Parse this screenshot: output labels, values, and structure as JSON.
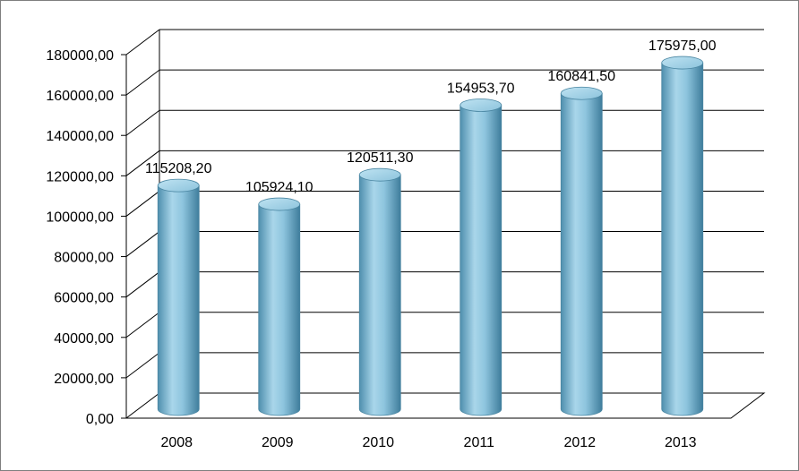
{
  "chart_data": {
    "type": "bar",
    "title": "",
    "xlabel": "",
    "ylabel": "",
    "categories": [
      "2008",
      "2009",
      "2010",
      "2011",
      "2012",
      "2013"
    ],
    "values": [
      115208.2,
      105924.1,
      120511.3,
      154953.7,
      160841.5,
      175975.0
    ],
    "value_labels": [
      "115208,20",
      "105924,10",
      "120511,30",
      "154953,70",
      "160841,50",
      "175975,00"
    ],
    "ytick_labels": [
      "0,00",
      "20000,00",
      "40000,00",
      "60000,00",
      "80000,00",
      "100000,00",
      "120000,00",
      "140000,00",
      "160000,00",
      "180000,00"
    ],
    "ylim": [
      0,
      180000
    ],
    "grid": true,
    "legend": "none",
    "style": "3d-cylinder",
    "bar_color": "#7fb6cf",
    "bar_edge_color": "#4a86a2"
  }
}
